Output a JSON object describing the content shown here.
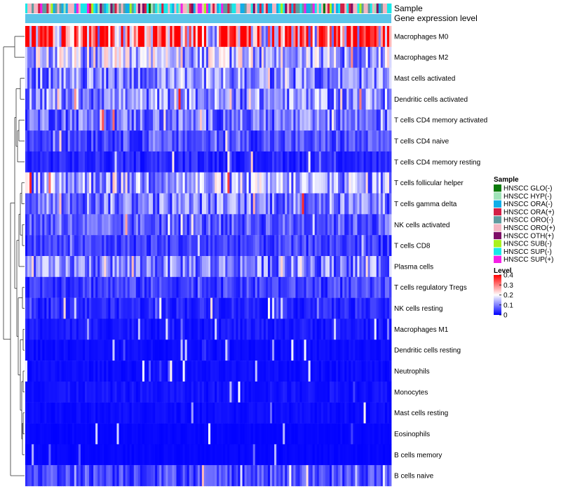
{
  "chart_data": {
    "type": "heatmap",
    "title": "",
    "annotation_rows": [
      "Sample",
      "Gene expression level"
    ],
    "gene_expression_level_color": "#5BC4E8",
    "row_labels": [
      "Macrophages M0",
      "Macrophages M2",
      "Mast cells activated",
      "Dendritic cells activated",
      "T cells CD4 memory activated",
      "T cells CD4 naive",
      "T cells CD4 memory resting",
      "T cells follicular helper",
      "T cells gamma delta",
      "NK cells activated",
      "T cells CD8",
      "Plasma cells",
      "T cells regulatory  Tregs",
      "NK cells resting",
      "Macrophages M1",
      "Dendritic cells resting",
      "Neutrophils",
      "Monocytes",
      "Mast cells resting",
      "Eosinophils",
      "B cells memory",
      "B cells naive"
    ],
    "row_mean_levels": [
      0.32,
      0.14,
      0.1,
      0.11,
      0.09,
      0.06,
      0.03,
      0.13,
      0.1,
      0.07,
      0.05,
      0.1,
      0.05,
      0.03,
      0.02,
      0.01,
      0.01,
      0.015,
      0.01,
      0.005,
      0.005,
      0.06
    ],
    "n_samples": 172,
    "sample_legend": {
      "title": "Sample",
      "items": [
        {
          "label": "HNSCC GLO(-)",
          "color": "#0B7A0B"
        },
        {
          "label": "HNSCC HYP(-)",
          "color": "#9FE3B8"
        },
        {
          "label": "HNSCC ORA(-)",
          "color": "#10AEE8"
        },
        {
          "label": "HNSCC ORA(+)",
          "color": "#D31F46"
        },
        {
          "label": "HNSCC ORO(-)",
          "color": "#5E9B9F"
        },
        {
          "label": "HNSCC ORO(+)",
          "color": "#F4B6C2"
        },
        {
          "label": "HNSCC OTH(+)",
          "color": "#7E0D66"
        },
        {
          "label": "HNSCC SUB(-)",
          "color": "#A9F21E"
        },
        {
          "label": "HNSCC SUP(-)",
          "color": "#19E8E8"
        },
        {
          "label": "HNSCC SUP(+)",
          "color": "#F51FE6"
        }
      ]
    },
    "level_legend": {
      "title": "Level",
      "ticks": [
        "0.4",
        "0.3",
        "0.2",
        "0.1",
        "0"
      ],
      "range": [
        0,
        0.4
      ],
      "colors": {
        "low": "#0000FF",
        "mid": "#FFFFFF",
        "high": "#FF0000"
      }
    }
  }
}
